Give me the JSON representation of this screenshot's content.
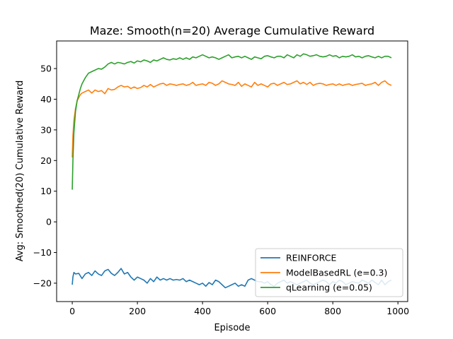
{
  "chart_data": {
    "type": "line",
    "title": "Maze: Smooth(n=20) Average Cumulative Reward",
    "xlabel": "Episode",
    "ylabel": "Avg: Smoothed(20) Cumulative Reward",
    "xlim": [
      -48,
      1030
    ],
    "ylim": [
      -26,
      59
    ],
    "xticks": [
      0,
      200,
      400,
      600,
      800,
      1000
    ],
    "yticks": [
      -20,
      -10,
      0,
      10,
      20,
      30,
      40,
      50
    ],
    "grid": false,
    "legend_position": "lower-right",
    "series": [
      {
        "name": "REINFORCE",
        "color": "#1f77b4",
        "x": [
          0,
          2,
          5,
          10,
          20,
          30,
          40,
          50,
          60,
          70,
          80,
          90,
          100,
          110,
          120,
          130,
          140,
          150,
          160,
          170,
          180,
          190,
          200,
          210,
          220,
          230,
          240,
          250,
          260,
          270,
          280,
          290,
          300,
          310,
          320,
          330,
          340,
          350,
          360,
          370,
          380,
          390,
          400,
          410,
          420,
          430,
          440,
          450,
          460,
          470,
          480,
          490,
          500,
          510,
          520,
          530,
          540,
          550,
          560,
          570,
          580,
          590,
          600,
          610,
          620,
          630,
          640,
          650,
          660,
          670,
          680,
          690,
          700,
          710,
          720,
          730,
          740,
          750,
          760,
          770,
          780,
          790,
          800,
          810,
          820,
          830,
          840,
          850,
          860,
          870,
          880,
          890,
          900,
          910,
          920,
          930,
          940,
          950,
          960,
          970,
          980
        ],
        "values": [
          -20.5,
          -18.0,
          -16.5,
          -17.0,
          -16.8,
          -18.5,
          -17.0,
          -16.5,
          -17.5,
          -16.0,
          -17.0,
          -17.5,
          -16.0,
          -15.5,
          -16.8,
          -17.5,
          -16.5,
          -15.2,
          -17.0,
          -16.5,
          -18.0,
          -19.0,
          -18.0,
          -18.5,
          -19.0,
          -20.0,
          -18.5,
          -19.5,
          -18.0,
          -19.0,
          -18.5,
          -19.0,
          -18.5,
          -19.0,
          -18.8,
          -19.0,
          -18.5,
          -19.5,
          -19.0,
          -19.5,
          -20.0,
          -20.5,
          -20.0,
          -21.0,
          -19.8,
          -20.5,
          -19.0,
          -19.5,
          -20.5,
          -21.5,
          -21.0,
          -20.5,
          -20.0,
          -21.0,
          -20.5,
          -21.0,
          -19.0,
          -18.5,
          -19.0,
          -19.5,
          -19.5,
          -20.0,
          -19.5,
          -20.5,
          -21.0,
          -20.0,
          -19.5,
          -19.0,
          -20.0,
          -19.5,
          -20.0,
          -20.5,
          -20.0,
          -19.5,
          -19.0,
          -20.0,
          -20.5,
          -20.0,
          -19.5,
          -19.0,
          -19.5,
          -20.5,
          -19.5,
          -20.0,
          -19.0,
          -19.5,
          -20.5,
          -20.0,
          -19.5,
          -19.8,
          -20.0,
          -19.0,
          -19.5,
          -20.0,
          -19.0,
          -19.8,
          -20.5,
          -19.0,
          -20.5,
          -19.5,
          -19.0
        ]
      },
      {
        "name": "ModelBasedRL (e=0.3)",
        "color": "#ff7f0e",
        "x": [
          0,
          2,
          5,
          10,
          15,
          20,
          25,
          30,
          40,
          50,
          60,
          70,
          80,
          90,
          100,
          110,
          120,
          130,
          140,
          150,
          160,
          170,
          180,
          190,
          200,
          210,
          220,
          230,
          240,
          250,
          260,
          270,
          280,
          290,
          300,
          310,
          320,
          330,
          340,
          350,
          360,
          370,
          380,
          390,
          400,
          410,
          420,
          430,
          440,
          450,
          460,
          470,
          480,
          490,
          500,
          510,
          520,
          530,
          540,
          550,
          560,
          570,
          580,
          590,
          600,
          610,
          620,
          630,
          640,
          650,
          660,
          670,
          680,
          690,
          700,
          710,
          720,
          730,
          740,
          750,
          760,
          770,
          780,
          790,
          800,
          810,
          820,
          830,
          840,
          850,
          860,
          870,
          880,
          890,
          900,
          910,
          920,
          930,
          940,
          950,
          960,
          970,
          980
        ],
        "values": [
          21.0,
          28.0,
          33.0,
          37.0,
          39.5,
          40.5,
          41.5,
          42.0,
          42.5,
          43.0,
          42.0,
          43.0,
          42.5,
          42.8,
          41.8,
          43.5,
          43.0,
          43.2,
          44.0,
          44.5,
          44.0,
          44.2,
          43.5,
          44.0,
          43.5,
          43.8,
          44.5,
          44.0,
          44.8,
          44.0,
          44.5,
          45.0,
          45.2,
          44.5,
          45.0,
          44.8,
          44.5,
          44.8,
          45.0,
          44.5,
          44.8,
          45.5,
          44.5,
          44.8,
          45.0,
          44.5,
          45.5,
          45.2,
          44.5,
          45.0,
          46.0,
          45.5,
          45.0,
          44.8,
          44.5,
          45.5,
          44.2,
          45.0,
          44.5,
          44.0,
          45.5,
          44.5,
          45.0,
          44.5,
          44.0,
          45.0,
          45.2,
          44.5,
          45.0,
          45.5,
          44.8,
          45.0,
          45.5,
          46.0,
          45.0,
          45.5,
          44.8,
          45.5,
          44.5,
          45.0,
          45.2,
          45.0,
          44.5,
          44.8,
          45.0,
          44.5,
          45.0,
          44.5,
          44.8,
          45.0,
          44.5,
          44.8,
          45.0,
          45.2,
          44.5,
          44.8,
          45.0,
          45.5,
          44.5,
          45.5,
          46.0,
          45.0,
          44.5
        ]
      },
      {
        "name": "qLearning (e=0.05)",
        "color": "#2ca02c",
        "x": [
          0,
          2,
          5,
          10,
          15,
          20,
          25,
          30,
          40,
          50,
          60,
          70,
          80,
          90,
          100,
          110,
          120,
          130,
          140,
          150,
          160,
          170,
          180,
          190,
          200,
          210,
          220,
          230,
          240,
          250,
          260,
          270,
          280,
          290,
          300,
          310,
          320,
          330,
          340,
          350,
          360,
          370,
          380,
          390,
          400,
          410,
          420,
          430,
          440,
          450,
          460,
          470,
          480,
          490,
          500,
          510,
          520,
          530,
          540,
          550,
          560,
          570,
          580,
          590,
          600,
          610,
          620,
          630,
          640,
          650,
          660,
          670,
          680,
          690,
          700,
          710,
          720,
          730,
          740,
          750,
          760,
          770,
          780,
          790,
          800,
          810,
          820,
          830,
          840,
          850,
          860,
          870,
          880,
          890,
          900,
          910,
          920,
          930,
          940,
          950,
          960,
          970,
          980
        ],
        "values": [
          10.5,
          20.0,
          29.0,
          36.0,
          39.5,
          41.5,
          43.5,
          45.0,
          47.0,
          48.5,
          49.0,
          49.5,
          50.0,
          49.8,
          50.5,
          51.5,
          52.0,
          51.5,
          52.0,
          51.8,
          51.5,
          52.0,
          52.3,
          51.8,
          52.5,
          52.2,
          52.8,
          52.5,
          52.0,
          52.8,
          52.5,
          53.0,
          53.5,
          53.0,
          52.8,
          53.2,
          53.0,
          53.5,
          53.0,
          53.5,
          53.0,
          53.8,
          53.5,
          54.0,
          54.5,
          54.0,
          53.5,
          53.8,
          53.5,
          53.0,
          53.5,
          54.0,
          54.5,
          53.5,
          53.8,
          54.0,
          53.5,
          54.0,
          53.5,
          53.0,
          53.8,
          53.5,
          53.2,
          54.0,
          54.2,
          53.8,
          53.5,
          54.0,
          54.0,
          53.5,
          54.5,
          54.0,
          53.5,
          54.5,
          54.0,
          54.8,
          54.5,
          54.0,
          54.2,
          54.5,
          54.0,
          53.8,
          54.0,
          54.5,
          54.0,
          54.2,
          53.5,
          54.0,
          53.8,
          54.0,
          54.5,
          53.8,
          54.0,
          53.5,
          54.0,
          54.2,
          53.8,
          53.5,
          54.0,
          53.5,
          54.0,
          54.0,
          53.5
        ]
      }
    ]
  }
}
